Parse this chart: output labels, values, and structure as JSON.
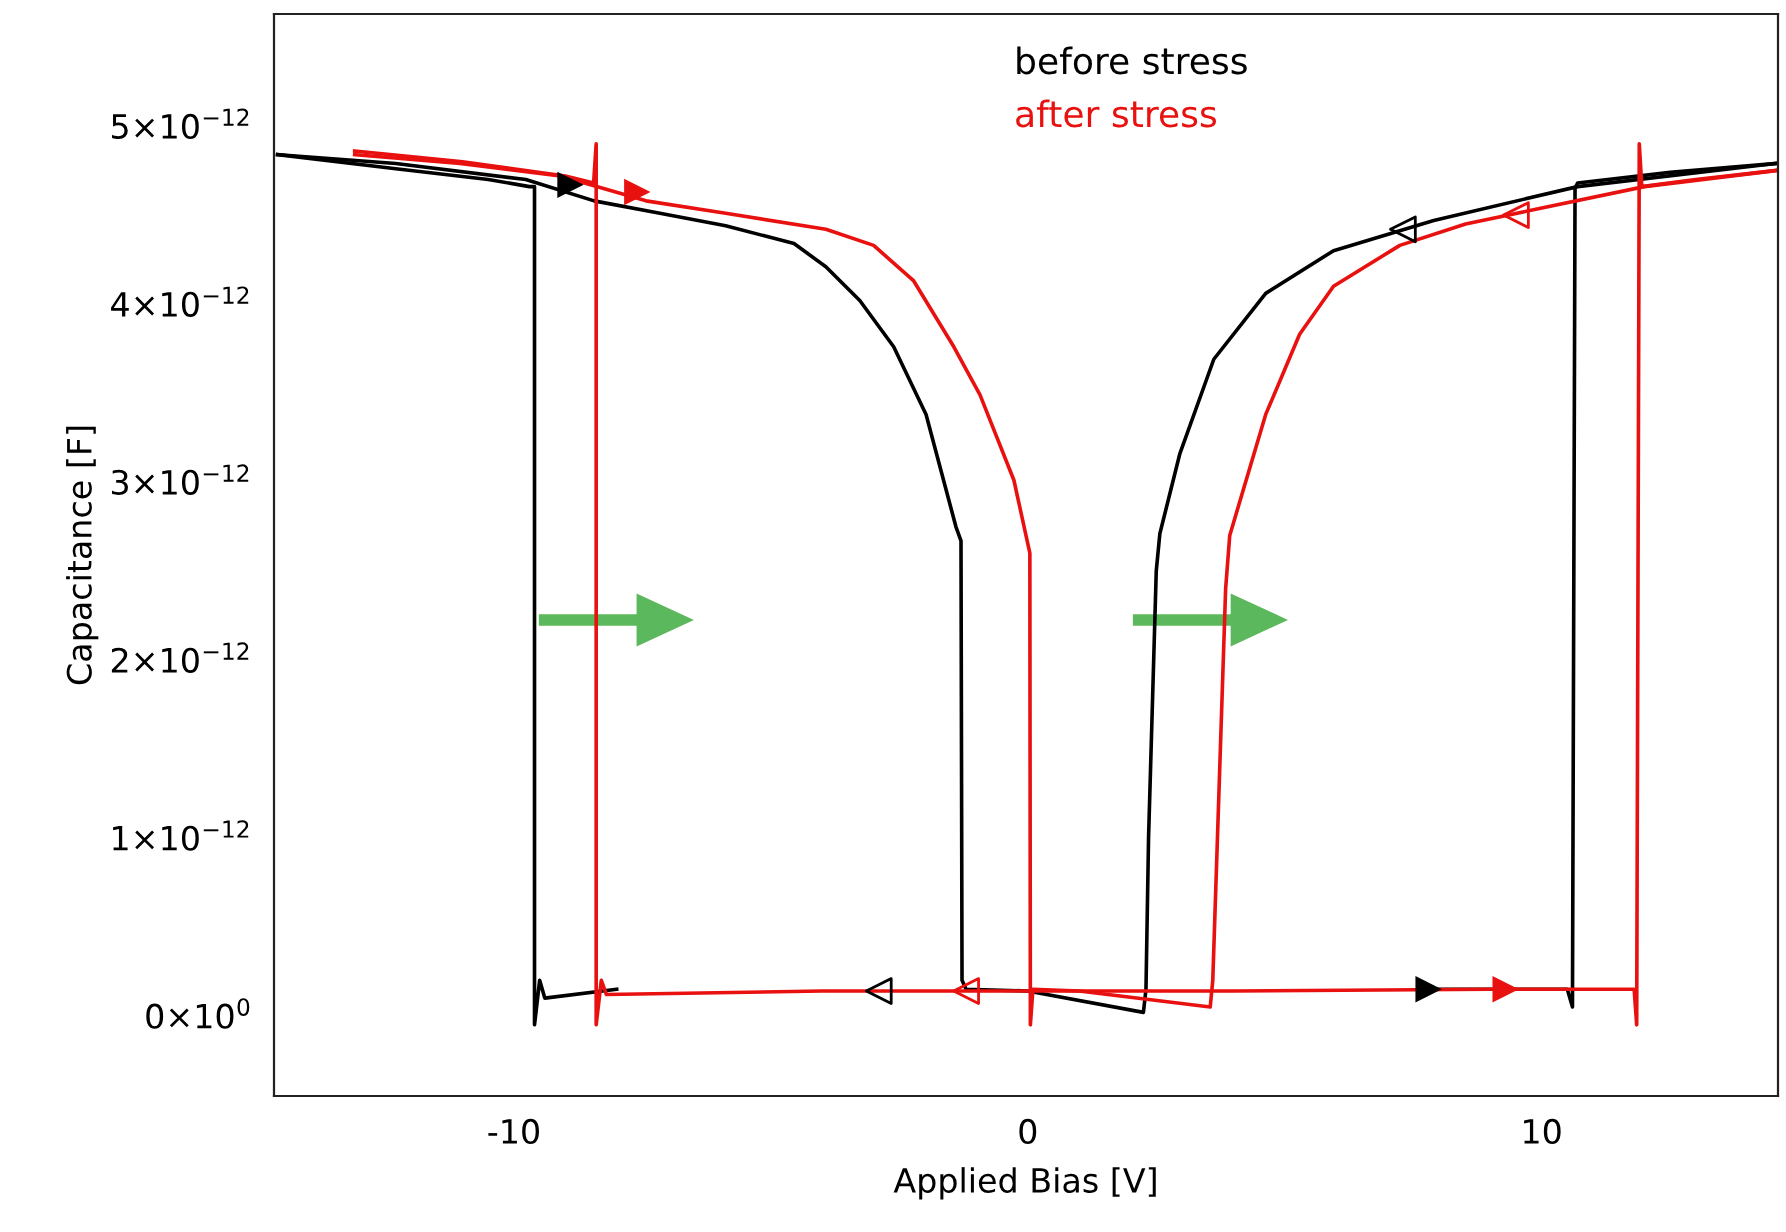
{
  "chart_data": {
    "type": "line",
    "xlabel": "Applied Bias [V]",
    "ylabel": "Capacitance [F]",
    "xlim": [
      -14.67,
      14.6
    ],
    "ylim": [
      -4.5e-13,
      5.63e-12
    ],
    "xticks": [
      -10,
      0,
      10
    ],
    "yticks": [
      {
        "value": 0,
        "label": "0×10$^{0}$"
      },
      {
        "value": 1e-12,
        "label": "1×10$^{−12}$"
      },
      {
        "value": 2e-12,
        "label": "2×10$^{−12}$"
      },
      {
        "value": 3e-12,
        "label": "3×10$^{−12}$"
      },
      {
        "value": 4e-12,
        "label": "4×10$^{−12}$"
      },
      {
        "value": 5e-12,
        "label": "5×10$^{−12}$"
      }
    ],
    "grid": false,
    "legend": "top",
    "series": [
      {
        "name": "before stress",
        "color": "#000000",
        "x": [
          -14.6,
          -12.3,
          -10.5,
          -9.7,
          -9.6,
          -9.6,
          -9.5,
          -9.4,
          -8,
          -4,
          0,
          4,
          7.8,
          10.5,
          10.6,
          10.65,
          10.7,
          12.5,
          14.55
        ],
        "values": [
          4.84e-12,
          4.76e-12,
          4.7e-12,
          4.66e-12,
          4.66e-12,
          -5e-14,
          2e-13,
          1e-13,
          1.5e-13,
          null,
          null,
          null,
          1.5e-13,
          1.5e-13,
          5e-14,
          4.65e-12,
          4.68e-12,
          4.74e-12,
          4.79e-12
        ]
      },
      {
        "type": "scatter",
        "marker": "triangle",
        "color": "#000000",
        "x": [
          -8.9,
          7.8
        ],
        "values": [
          4.67e-12,
          1.5e-13
        ]
      },
      {
        "color": "#000000",
        "x": [
          14.55,
          10.7,
          7.9,
          5.95,
          4.63,
          3.62,
          2.96,
          2.57,
          2.5,
          2.35,
          2.3,
          2.25,
          0,
          -1.2,
          -1.28,
          -1.3,
          -1.4,
          -1.98,
          -2.61,
          -3.27,
          -3.93,
          -4.55,
          -5.88,
          -7.16,
          -8.44,
          -9.77,
          -12.3,
          -14.6
        ],
        "values": [
          4.79e-12,
          4.66e-12,
          4.47e-12,
          4.3e-12,
          4.06e-12,
          3.69e-12,
          3.16e-12,
          2.71e-12,
          2.5e-12,
          1e-12,
          1.5e-13,
          2e-14,
          1.4e-13,
          1.5e-13,
          2e-13,
          2.67e-12,
          2.75e-12,
          3.38e-12,
          3.76e-12,
          4.02e-12,
          4.21e-12,
          4.34e-12,
          4.44e-12,
          4.51e-12,
          4.58e-12,
          4.7e-12,
          4.79e-12,
          4.84e-12
        ]
      },
      {
        "type": "scatter",
        "marker": "triangle",
        "color": "#000000",
        "x": [
          -2.9,
          7.3
        ],
        "values": [
          1.4e-13,
          4.42e-12
        ]
      },
      {
        "name": "after stress",
        "color": "#e8110f",
        "x": [
          -13.1,
          -11,
          -9,
          -8.45,
          -8.4,
          -8.4,
          -8.3,
          -8.2,
          -4,
          0,
          4,
          9,
          11.8,
          11.85,
          11.9,
          11.95,
          13,
          14.55
        ],
        "values": [
          4.86e-12,
          4.8e-12,
          4.72e-12,
          4.68e-12,
          4.9e-12,
          -5e-14,
          2e-13,
          1.2e-13,
          1.4e-13,
          1.4e-13,
          1.4e-13,
          1.5e-13,
          1.5e-13,
          -5e-14,
          4.9e-12,
          4.66e-12,
          4.7e-12,
          4.75e-12
        ]
      },
      {
        "type": "scatter",
        "marker": "triangle",
        "color": "#e8110f",
        "x": [
          -7.6,
          9.3
        ],
        "values": [
          4.63e-12,
          1.5e-13
        ]
      },
      {
        "color": "#e8110f",
        "x": [
          14.55,
          12.0,
          9.84,
          8.52,
          7.24,
          5.95,
          5.29,
          4.63,
          3.93,
          3.85,
          3.6,
          3.55,
          1,
          0.1,
          0.05,
          0.04,
          -0.27,
          -0.93,
          -1.44,
          -2.22,
          -3.0,
          -3.93,
          -5.88,
          -7.43,
          -9.1,
          -11.05,
          -13.1
        ],
        "values": [
          4.75e-12,
          4.66e-12,
          4.53e-12,
          4.45e-12,
          4.33e-12,
          4.1e-12,
          3.83e-12,
          3.38e-12,
          2.7e-12,
          2.4e-12,
          2e-13,
          5e-14,
          1.4e-13,
          1.5e-13,
          -5e-14,
          2.6e-12,
          3.01e-12,
          3.49e-12,
          3.76e-12,
          4.13e-12,
          4.33e-12,
          4.42e-12,
          4.51e-12,
          4.58e-12,
          4.72e-12,
          4.79e-12,
          4.84e-12
        ]
      },
      {
        "type": "scatter",
        "marker": "triangle",
        "color": "#e8110f",
        "x": [
          -1.2,
          9.5
        ],
        "values": [
          1.4e-13,
          4.5e-12
        ]
      }
    ]
  }
}
